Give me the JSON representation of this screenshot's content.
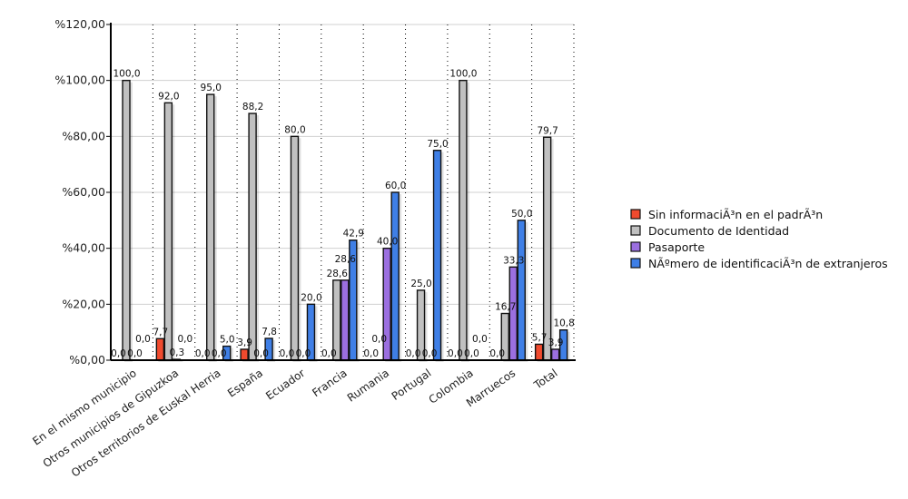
{
  "chart_data": {
    "type": "bar",
    "title": "",
    "xlabel": "",
    "ylabel": "",
    "ylim": [
      0,
      120
    ],
    "y_ticks": [
      "%0,00",
      "%20,00",
      "%40,00",
      "%60,00",
      "%80,00",
      "%100,00",
      "%120,00"
    ],
    "grid": true,
    "legend_position": "right",
    "categories": [
      "En el mismo municipio",
      "Otros municipios de Gipuzkoa",
      "Otros territorios de Euskal Herria",
      "España",
      "Ecuador",
      "Francia",
      "Rumania",
      "Portugal",
      "Colombia",
      "Marruecos",
      "Total"
    ],
    "series": [
      {
        "name": "Sin informaciÃ³n en el padrÃ³n",
        "color": "#f04a2e",
        "values": [
          0,
          7.7,
          0,
          3.9,
          0,
          0,
          0,
          0,
          0,
          0,
          5.7
        ]
      },
      {
        "name": "Documento de Identidad",
        "color": "#c0c0c0",
        "values": [
          100,
          92,
          95,
          88.2,
          80,
          28.6,
          0,
          25,
          100,
          16.7,
          79.7
        ]
      },
      {
        "name": "Pasaporte",
        "color": "#9b6fe0",
        "values": [
          0,
          0.3,
          0,
          0,
          0,
          28.6,
          40,
          0,
          0,
          33.3,
          3.9
        ]
      },
      {
        "name": "NÃºmero de identificaciÃ³n de extranjeros",
        "color": "#3f7fe6",
        "values": [
          0,
          0,
          5,
          7.8,
          20,
          42.9,
          60,
          75,
          0,
          50,
          10.8
        ]
      }
    ]
  }
}
